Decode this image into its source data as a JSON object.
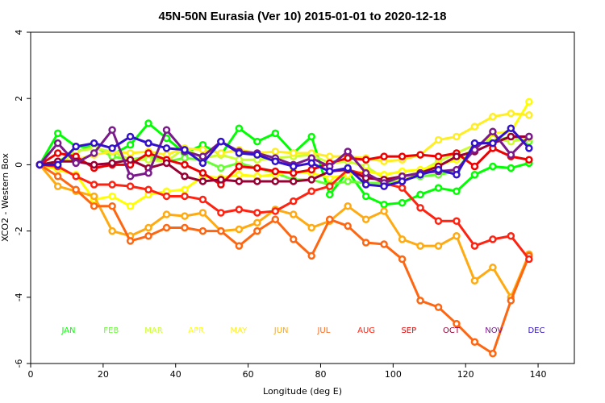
{
  "chart_data": {
    "type": "line",
    "title": "45N-50N Eurasia (Ver 10)   2015-01-01 to 2020-12-18",
    "xlabel": "Longitude (deg E)",
    "ylabel": "XCO2 - Western Box",
    "xlim": [
      0,
      150
    ],
    "ylim": [
      -6,
      4
    ],
    "xticks": [
      0,
      20,
      40,
      60,
      80,
      100,
      120,
      140
    ],
    "yticks": [
      -6,
      -4,
      -2,
      0,
      2,
      4
    ],
    "grid": false,
    "legend": "bottom",
    "x": [
      2.5,
      7.5,
      12.5,
      17.5,
      22.5,
      27.5,
      32.5,
      37.5,
      42.5,
      47.5,
      52.5,
      57.5,
      62.5,
      67.5,
      72.5,
      77.5,
      82.5,
      87.5,
      92.5,
      97.5,
      102.5,
      107.5,
      112.5,
      117.5,
      122.5,
      127.5,
      132.5,
      137.5
    ],
    "series": [
      {
        "name": "JAN",
        "color": "#00ff00",
        "values": [
          0.0,
          0.95,
          0.55,
          0.55,
          0.3,
          0.6,
          1.25,
          0.8,
          0.35,
          0.6,
          0.3,
          1.1,
          0.7,
          0.95,
          0.35,
          0.85,
          -0.9,
          -0.2,
          -0.95,
          -1.2,
          -1.15,
          -0.9,
          -0.7,
          -0.8,
          -0.3,
          -0.05,
          -0.1,
          0.05
        ]
      },
      {
        "name": "FEB",
        "color": "#66ff33",
        "values": [
          0.0,
          0.1,
          0.4,
          0.55,
          0.25,
          0.15,
          0.25,
          0.1,
          0.2,
          0.15,
          -0.1,
          0.05,
          -0.1,
          -0.25,
          -0.45,
          -0.45,
          -0.6,
          -0.5,
          -0.55,
          -0.55,
          -0.45,
          -0.35,
          -0.3,
          -0.2,
          0.6,
          0.7,
          0.85,
          0.7
        ]
      },
      {
        "name": "MAR",
        "color": "#ccff33",
        "values": [
          0.0,
          0.0,
          0.4,
          0.5,
          0.4,
          0.15,
          0.15,
          0.1,
          0.5,
          0.2,
          0.3,
          0.15,
          0.15,
          0.2,
          0.25,
          0.3,
          0.05,
          0.1,
          -0.05,
          -0.4,
          -0.5,
          -0.2,
          0.1,
          0.35,
          0.6,
          0.8,
          0.7,
          0.8
        ]
      },
      {
        "name": "APR",
        "color": "#ffff00",
        "values": [
          0.0,
          -0.15,
          -0.3,
          -1.05,
          -0.95,
          -1.25,
          -0.9,
          -0.8,
          -0.75,
          -0.35,
          -0.4,
          -0.3,
          -0.35,
          -0.3,
          -0.2,
          -0.25,
          -0.4,
          -0.3,
          -0.2,
          -0.3,
          -0.2,
          -0.15,
          0.0,
          0.15,
          0.5,
          0.95,
          1.0,
          1.9
        ]
      },
      {
        "name": "MAY",
        "color": "#ffee22",
        "values": [
          0.0,
          0.1,
          0.15,
          0.3,
          0.4,
          0.35,
          0.4,
          0.3,
          0.5,
          0.45,
          0.35,
          0.45,
          0.35,
          0.4,
          0.35,
          0.35,
          0.25,
          0.25,
          0.2,
          0.1,
          0.15,
          0.3,
          0.75,
          0.85,
          1.15,
          1.45,
          1.55,
          1.5
        ]
      },
      {
        "name": "JUN",
        "color": "#ffaa11",
        "values": [
          0.0,
          -0.65,
          -0.8,
          -0.95,
          -2.0,
          -2.15,
          -1.9,
          -1.5,
          -1.55,
          -1.45,
          -2.0,
          -1.95,
          -1.75,
          -1.35,
          -1.5,
          -1.9,
          -1.7,
          -1.25,
          -1.65,
          -1.4,
          -2.25,
          -2.45,
          -2.45,
          -2.15,
          -3.5,
          -3.1,
          -4.0,
          -2.7
        ]
      },
      {
        "name": "JUL",
        "color": "#ff6611",
        "values": [
          0.0,
          -0.35,
          -0.75,
          -1.25,
          -1.25,
          -2.3,
          -2.15,
          -1.9,
          -1.9,
          -2.0,
          -2.0,
          -2.45,
          -2.0,
          -1.65,
          -2.25,
          -2.75,
          -1.65,
          -1.85,
          -2.35,
          -2.4,
          -2.85,
          -4.1,
          -4.3,
          -4.8,
          -5.35,
          -5.7,
          -4.1,
          -2.75
        ]
      },
      {
        "name": "AUG",
        "color": "#ff2211",
        "values": [
          0.0,
          -0.05,
          -0.35,
          -0.6,
          -0.6,
          -0.65,
          -0.75,
          -0.95,
          -0.95,
          -1.05,
          -1.45,
          -1.35,
          -1.45,
          -1.4,
          -1.1,
          -0.8,
          -0.65,
          -0.15,
          -0.3,
          -0.55,
          -0.7,
          -1.3,
          -1.7,
          -1.7,
          -2.45,
          -2.25,
          -2.15,
          -2.85
        ]
      },
      {
        "name": "SEP",
        "color": "#ee0000",
        "values": [
          0.0,
          0.35,
          0.25,
          -0.1,
          0.0,
          0.0,
          0.35,
          0.15,
          0.0,
          -0.25,
          -0.6,
          -0.05,
          -0.1,
          -0.2,
          -0.25,
          -0.15,
          0.05,
          0.2,
          0.15,
          0.25,
          0.25,
          0.3,
          0.25,
          0.35,
          -0.05,
          0.5,
          0.25,
          0.15
        ]
      },
      {
        "name": "OCT",
        "color": "#990033",
        "values": [
          0.0,
          0.1,
          0.1,
          0.0,
          0.05,
          0.15,
          -0.1,
          0.05,
          -0.35,
          -0.5,
          -0.45,
          -0.5,
          -0.5,
          -0.5,
          -0.5,
          -0.45,
          -0.2,
          -0.15,
          -0.4,
          -0.45,
          -0.35,
          -0.25,
          -0.05,
          0.25,
          0.4,
          0.65,
          0.85,
          0.85
        ]
      },
      {
        "name": "NOV",
        "color": "#7a1a8c",
        "values": [
          0.0,
          0.65,
          0.05,
          0.35,
          1.05,
          -0.35,
          -0.25,
          1.05,
          0.4,
          0.25,
          0.7,
          0.4,
          0.35,
          0.2,
          0.0,
          0.2,
          -0.05,
          0.4,
          -0.25,
          -0.55,
          -0.35,
          -0.25,
          -0.2,
          -0.15,
          0.45,
          1.0,
          0.3,
          0.85
        ]
      },
      {
        "name": "DEC",
        "color": "#3311cc",
        "values": [
          0.0,
          0.0,
          0.55,
          0.65,
          0.5,
          0.85,
          0.65,
          0.5,
          0.45,
          0.05,
          0.7,
          0.35,
          0.3,
          0.1,
          -0.05,
          0.05,
          -0.2,
          -0.1,
          -0.6,
          -0.65,
          -0.5,
          -0.3,
          -0.15,
          -0.3,
          0.65,
          0.65,
          1.1,
          0.5
        ]
      }
    ]
  }
}
